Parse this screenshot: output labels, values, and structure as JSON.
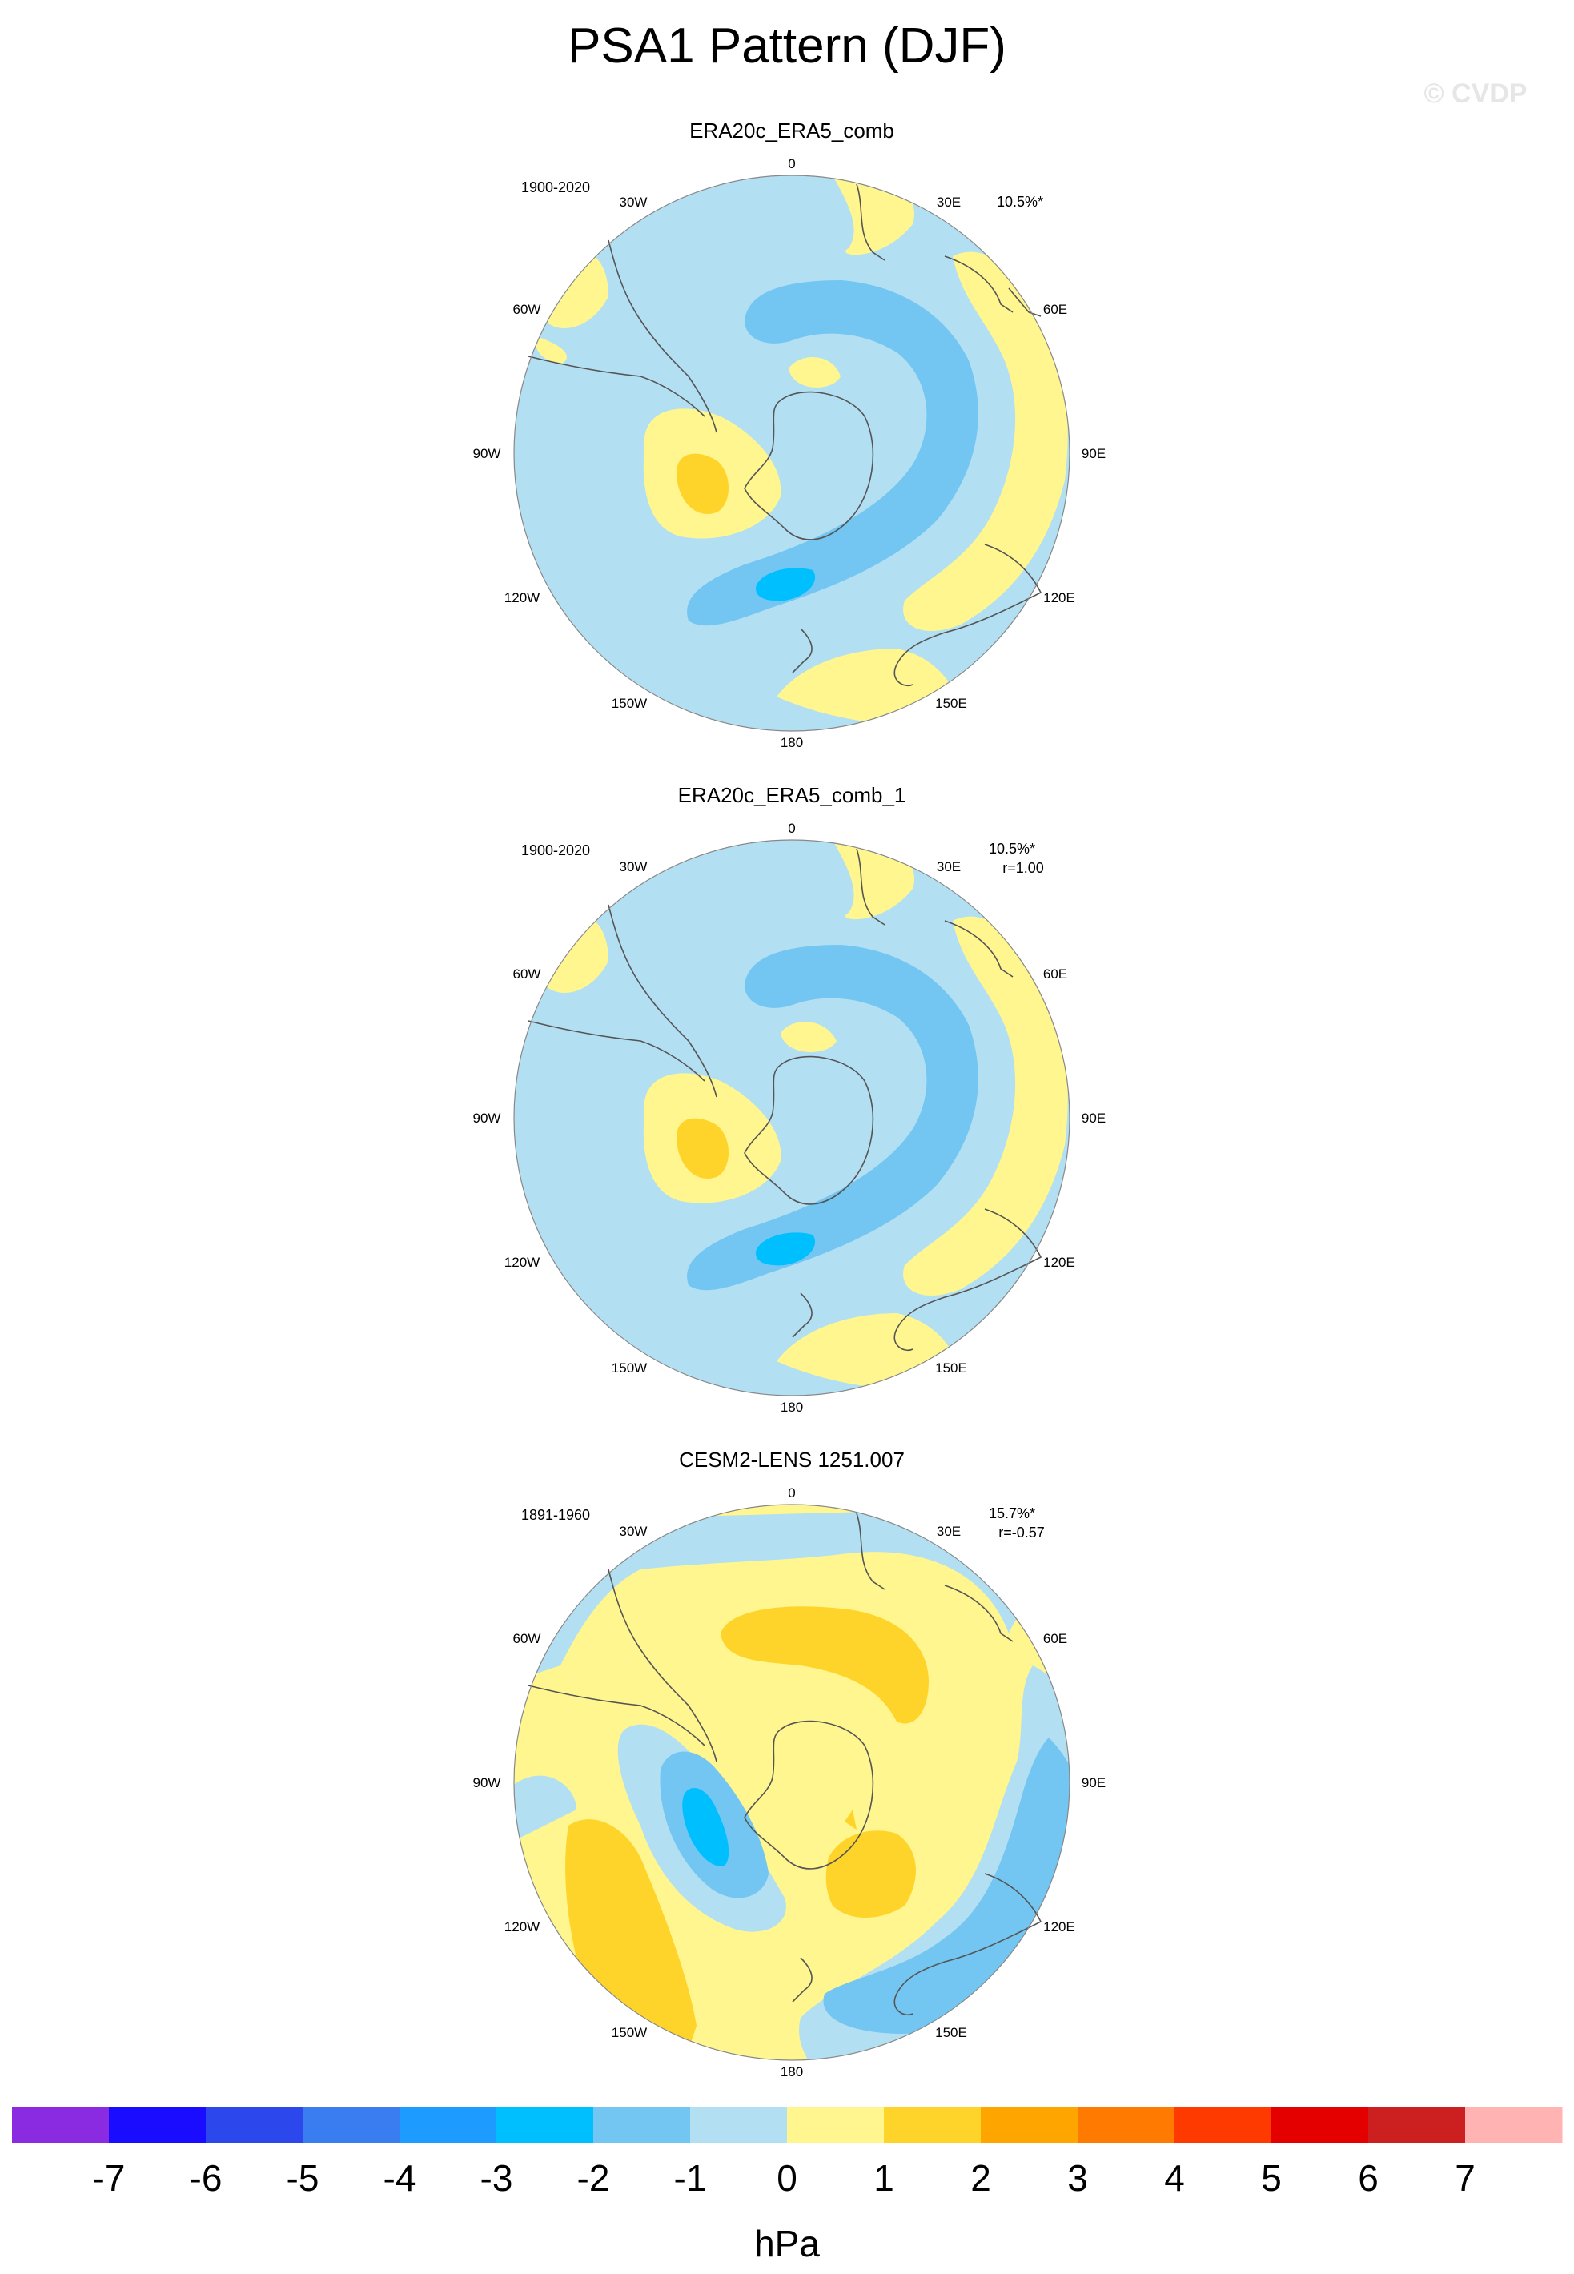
{
  "title": "PSA1 Pattern (DJF)",
  "copyright": "© CVDP",
  "colors": {
    "background": "#ffffff",
    "coast": "#555555",
    "boundary": "#888888",
    "contour_levels": [
      {
        "min": -8,
        "max": -7,
        "color": "#8a2be2"
      },
      {
        "min": -7,
        "max": -6,
        "color": "#1a0dff"
      },
      {
        "min": -6,
        "max": -5,
        "color": "#2c47ec"
      },
      {
        "min": -5,
        "max": -4,
        "color": "#3a7df0"
      },
      {
        "min": -4,
        "max": -3,
        "color": "#1e9bff"
      },
      {
        "min": -3,
        "max": -2,
        "color": "#00bfff"
      },
      {
        "min": -2,
        "max": -1,
        "color": "#73c6f1"
      },
      {
        "min": -1,
        "max": 0,
        "color": "#b3dff3"
      },
      {
        "min": 0,
        "max": 1,
        "color": "#fff68f"
      },
      {
        "min": 1,
        "max": 2,
        "color": "#ffd42a"
      },
      {
        "min": 2,
        "max": 3,
        "color": "#ffa500"
      },
      {
        "min": 3,
        "max": 4,
        "color": "#ff7a00"
      },
      {
        "min": 4,
        "max": 5,
        "color": "#ff3a00"
      },
      {
        "min": 5,
        "max": 6,
        "color": "#e50000"
      },
      {
        "min": 6,
        "max": 7,
        "color": "#cc1f1f"
      },
      {
        "min": 7,
        "max": 8,
        "color": "#ffb3b3"
      }
    ]
  },
  "chart_data": [
    {
      "type": "heatmap",
      "projection": "south-polar-stereographic",
      "title": "ERA20c_ERA5_comb",
      "period": "1900-2020",
      "variance": "10.5%*",
      "correlation": "",
      "longitude_labels": [
        "0",
        "30E",
        "60E",
        "90E",
        "120E",
        "150E",
        "180",
        "150W",
        "120W",
        "90W",
        "60W",
        "30W"
      ],
      "anomaly_centers_hPa": [
        {
          "name": "negative-trough",
          "value": -1.8
        },
        {
          "name": "positive-ridge-west",
          "value": 1.6
        },
        {
          "name": "negative-core-south",
          "value": -2.5
        },
        {
          "name": "positive-north",
          "value": 0.6
        }
      ]
    },
    {
      "type": "heatmap",
      "projection": "south-polar-stereographic",
      "title": "ERA20c_ERA5_comb_1",
      "period": "1900-2020",
      "variance": "10.5%*",
      "correlation": "r=1.00",
      "longitude_labels": [
        "0",
        "30E",
        "60E",
        "90E",
        "120E",
        "150E",
        "180",
        "150W",
        "120W",
        "90W",
        "60W",
        "30W"
      ],
      "anomaly_centers_hPa": [
        {
          "name": "negative-trough",
          "value": -1.8
        },
        {
          "name": "positive-ridge-west",
          "value": 1.6
        },
        {
          "name": "negative-core-south",
          "value": -2.5
        },
        {
          "name": "positive-north",
          "value": 0.6
        }
      ]
    },
    {
      "type": "heatmap",
      "projection": "south-polar-stereographic",
      "title": "CESM2-LENS 1251.007",
      "period": "1891-1960",
      "variance": "15.7%*",
      "correlation": "r=-0.57",
      "longitude_labels": [
        "0",
        "30E",
        "60E",
        "90E",
        "120E",
        "150E",
        "180",
        "150W",
        "120W",
        "90W",
        "60W",
        "30W"
      ],
      "anomaly_centers_hPa": [
        {
          "name": "positive-north",
          "value": 1.6
        },
        {
          "name": "negative-core-west",
          "value": -2.5
        },
        {
          "name": "positive-southeast",
          "value": 1.5
        },
        {
          "name": "positive-southwest",
          "value": 1.6
        },
        {
          "name": "negative-southeast-band",
          "value": -1.4
        }
      ]
    }
  ],
  "colorbar": {
    "tick_labels": [
      "-7",
      "-6",
      "-5",
      "-4",
      "-3",
      "-2",
      "-1",
      "0",
      "1",
      "2",
      "3",
      "4",
      "5",
      "6",
      "7"
    ],
    "units": "hPa"
  }
}
